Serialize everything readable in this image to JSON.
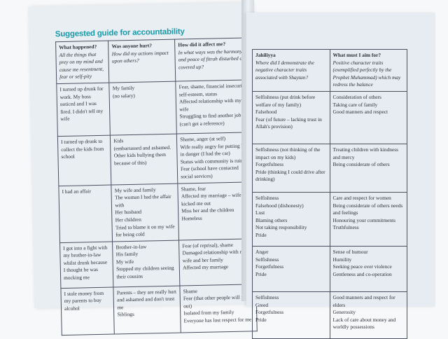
{
  "title": "Suggested guide for accountability",
  "left_headers": [
    {
      "title": "What happened?",
      "subtitle": "All the things that prey on my mind and cause me resentment, fear or self-pity"
    },
    {
      "title": "Was anyone hurt?",
      "subtitle": "How did my actions impact upon others?"
    },
    {
      "title": "How did it affect me?",
      "subtitle": "In what ways was the harmony and peace of fitrah disturbed and covered up?"
    }
  ],
  "right_headers": [
    {
      "title": "Jahiliyya",
      "subtitle": "Where did I demonstrate the negative character traits associated with Shaytan?"
    },
    {
      "title": "What must I aim for?",
      "subtitle": "Positive character traits (exemplified perfectly by the Prophet Muhammad) which may redress the balance"
    }
  ],
  "rows": [
    {
      "happened": [
        "I turned up drunk for work. My boss noticed and I was fired. I didn't tell my wife"
      ],
      "hurt": [
        "My family",
        "(no salary)"
      ],
      "affect": [
        "Fear, shame, financial insecurity, self-esteem, status",
        "Affected relationship with my wife",
        "Struggling to find another job (can't get a reference)"
      ],
      "jahiliyya": [
        "Selfishness (put drink before welfare of my family)",
        "Falsehood",
        "Fear (of future – lacking trust in Allah's provision)"
      ],
      "aim": [
        "Consideration of others",
        "Taking care of family",
        "Good manners and respect"
      ]
    },
    {
      "happened": [
        "I turned up drunk to collect the kids from school"
      ],
      "hurt": [
        "Kids",
        "(embarrassed and ashamed. Other kids bullying them because of this)"
      ],
      "affect": [
        "Shame, anger (at self)",
        "Wife really angry for putting kids in danger (I had the car)",
        "Status with community is ruined",
        "Fear (school have contacted social services)"
      ],
      "jahiliyya": [
        "Selfishness (not thinking of the impact on my kids)",
        "Forgetfulness",
        "Pride (thinking I could drive after drinking)"
      ],
      "aim": [
        "Treating children with kindness and mercy",
        "Being considerate of others"
      ]
    },
    {
      "happened": [
        "I had an affair"
      ],
      "hurt": [
        "My wife and family",
        "The woman I had the affair with",
        "Her husband",
        "Her children",
        "Tried to blame it on my wife for being cold"
      ],
      "affect": [
        "Shame, fear",
        "Affected my marriage – wife kicked me out",
        "Miss her and the children",
        "Homeless"
      ],
      "jahiliyya": [
        "Selfishness",
        "Falsehood (dishonesty)",
        "Lust",
        "Blaming others",
        "Not taking responsibility",
        "Pride"
      ],
      "aim": [
        "Care and respect for women",
        "Being considerate of others needs and feelings",
        "Honouring your commitments",
        "Truthfulness"
      ]
    },
    {
      "happened": [
        "I got into a fight with my brother-in-law whilst drunk because I thought he was mocking me"
      ],
      "hurt": [
        "Brother-in-law",
        "His family",
        "My wife",
        "Stopped my children seeing their cousins"
      ],
      "affect": [
        "Fear (of reprisal), shame",
        "Damaged relationship with my wife and her family",
        "Affected my marriage"
      ],
      "jahiliyya": [
        "Anger",
        "Selfishness",
        "Forgetfulness",
        "Pride"
      ],
      "aim": [
        "Sense of humour",
        "Humility",
        "Seeking peace over violence",
        "Gentleness and co-operation"
      ]
    },
    {
      "happened": [
        "I stole money from my parents to buy alcohol"
      ],
      "hurt": [
        "Parents – they are really hurt and ashamed and don't trust me",
        "Siblings"
      ],
      "affect": [
        "Shame",
        "Fear (that other people will find out)",
        "Isolated from my family",
        "Everyone has lost respect for me"
      ],
      "jahiliyya": [
        "Selfishness",
        "Greed",
        "Forgetfulness",
        "Pride"
      ],
      "aim": [
        "Good manners and respect for elders",
        "Generosity",
        "Lack of care about money and worldly possessions"
      ]
    }
  ]
}
